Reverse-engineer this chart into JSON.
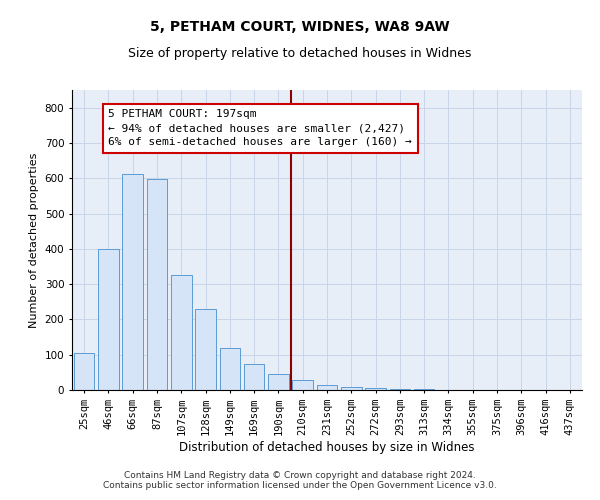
{
  "title": "5, PETHAM COURT, WIDNES, WA8 9AW",
  "subtitle": "Size of property relative to detached houses in Widnes",
  "xlabel": "Distribution of detached houses by size in Widnes",
  "ylabel": "Number of detached properties",
  "categories": [
    "25sqm",
    "46sqm",
    "66sqm",
    "87sqm",
    "107sqm",
    "128sqm",
    "149sqm",
    "169sqm",
    "190sqm",
    "210sqm",
    "231sqm",
    "252sqm",
    "272sqm",
    "293sqm",
    "313sqm",
    "334sqm",
    "355sqm",
    "375sqm",
    "396sqm",
    "416sqm",
    "437sqm"
  ],
  "values": [
    104,
    400,
    612,
    597,
    325,
    230,
    120,
    75,
    45,
    28,
    14,
    8,
    5,
    3,
    2,
    1,
    1,
    0,
    0,
    0,
    0
  ],
  "bar_color": "#d6e4f7",
  "bar_edge_color": "#5b9bd5",
  "vline_color": "#8b0000",
  "vline_x": 8.5,
  "annotation_box_text": "5 PETHAM COURT: 197sqm\n← 94% of detached houses are smaller (2,427)\n6% of semi-detached houses are larger (160) →",
  "annotation_fontsize": 8,
  "ylim": [
    0,
    850
  ],
  "yticks": [
    0,
    100,
    200,
    300,
    400,
    500,
    600,
    700,
    800
  ],
  "grid_color": "#c8d4e8",
  "background_color": "#e8eef8",
  "footer_text": "Contains HM Land Registry data © Crown copyright and database right 2024.\nContains public sector information licensed under the Open Government Licence v3.0.",
  "title_fontsize": 10,
  "subtitle_fontsize": 9,
  "xlabel_fontsize": 8.5,
  "ylabel_fontsize": 8,
  "tick_fontsize": 7.5
}
